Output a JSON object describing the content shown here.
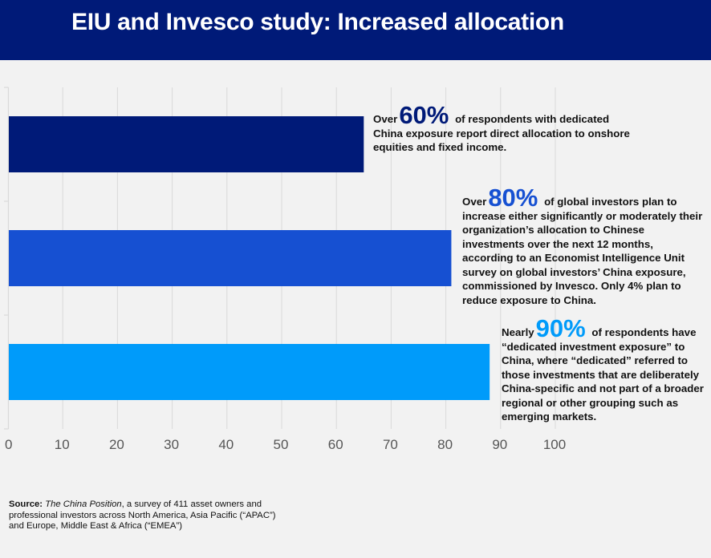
{
  "header": {
    "title": "EIU and Invesco study: Increased allocation"
  },
  "colors": {
    "header_bg": "#001a78",
    "bar_60": "#001a78",
    "bar_80": "#1650d2",
    "bar_90": "#009bfa",
    "grid": "#d9d9d9",
    "background": "#f2f2f2"
  },
  "chart_data": {
    "type": "bar",
    "orientation": "horizontal",
    "title": "EIU and Invesco study: Increased allocation",
    "xlabel": "",
    "ylabel": "",
    "xlim": [
      0,
      100
    ],
    "x_ticks": [
      "0",
      "10",
      "20",
      "30",
      "40",
      "50",
      "60",
      "70",
      "80",
      "90",
      "100"
    ],
    "grid": true,
    "categories": [
      "60%",
      "80%",
      "90%"
    ],
    "values": [
      65,
      81,
      88
    ]
  },
  "callouts": [
    {
      "lead": "Over",
      "pct": "60%",
      "first_line": "of respondents with dedicated",
      "rest": "China exposure report direct allocation to onshore equities and fixed income."
    },
    {
      "lead": "Over",
      "pct": "80%",
      "first_line": "of global investors plan to",
      "rest": "increase either significantly or moderately their organization’s allocation to Chinese investments over the next 12 months, according to an Economist Intelligence Unit survey on global investors’ China exposure, commissioned by Invesco. Only 4% plan to reduce exposure to China."
    },
    {
      "lead": "Nearly",
      "pct": "90%",
      "first_line": "of respondents have",
      "rest": "“dedicated investment exposure” to China, where “dedicated” referred to those investments that are deliberately China-specific and not part of a broader regional or other grouping such as emerging markets."
    }
  ],
  "source": {
    "label": "Source:",
    "title": "The China Position",
    "text": ", a survey of 411 asset owners and professional investors across North America, Asia Pacific (“APAC”) and Europe, Middle East & Africa (“EMEA”)"
  }
}
